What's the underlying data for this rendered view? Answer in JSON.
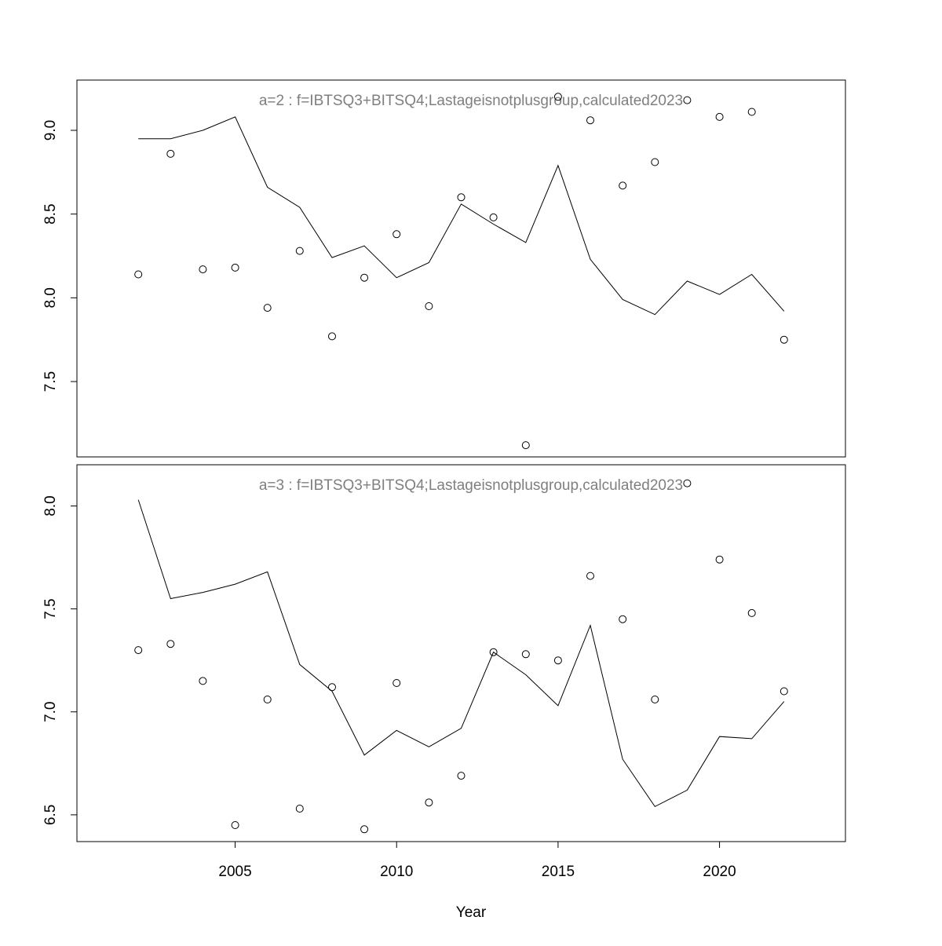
{
  "chart_data": [
    {
      "type": "line+scatter",
      "panel_label": "a=2  :  f=IBTSQ3+BITSQ4;Lastageisnotplusgroup,calculated2023",
      "xlabel": "",
      "ylabel": "",
      "xlim": [
        2000.1,
        2023.9
      ],
      "ylim": [
        7.05,
        9.3
      ],
      "yticks": [
        7.5,
        8.0,
        8.5,
        9.0
      ],
      "ytick_labels": [
        "7.5",
        "8.0",
        "8.5",
        "9.0"
      ],
      "line_series": {
        "x": [
          2002,
          2003,
          2004,
          2005,
          2006,
          2007,
          2008,
          2009,
          2010,
          2011,
          2012,
          2013,
          2014,
          2015,
          2016,
          2017,
          2018,
          2019,
          2020,
          2021,
          2022
        ],
        "values": [
          8.95,
          8.95,
          9.0,
          9.08,
          8.66,
          8.54,
          8.24,
          8.31,
          8.12,
          8.21,
          8.56,
          8.44,
          8.33,
          8.79,
          8.23,
          7.99,
          7.9,
          8.1,
          8.02,
          8.14,
          7.92
        ]
      },
      "point_series": {
        "x": [
          2002,
          2003,
          2004,
          2005,
          2006,
          2007,
          2008,
          2009,
          2010,
          2011,
          2012,
          2013,
          2014,
          2015,
          2016,
          2017,
          2018,
          2019,
          2020,
          2021,
          2022
        ],
        "values": [
          8.14,
          8.86,
          8.17,
          8.18,
          7.94,
          8.28,
          7.77,
          8.12,
          8.38,
          7.95,
          8.6,
          8.48,
          7.12,
          9.2,
          9.06,
          8.67,
          8.81,
          9.18,
          9.08,
          9.11,
          7.75
        ]
      }
    },
    {
      "type": "line+scatter",
      "panel_label": "a=3  :  f=IBTSQ3+BITSQ4;Lastageisnotplusgroup,calculated2023",
      "xlabel": "Year",
      "ylabel": "",
      "xlim": [
        2000.1,
        2023.9
      ],
      "ylim": [
        6.37,
        8.2
      ],
      "yticks": [
        6.5,
        7.0,
        7.5,
        8.0
      ],
      "ytick_labels": [
        "6.5",
        "7.0",
        "7.5",
        "8.0"
      ],
      "xticks": [
        2005,
        2010,
        2015,
        2020
      ],
      "xtick_labels": [
        "2005",
        "2010",
        "2015",
        "2020"
      ],
      "line_series": {
        "x": [
          2002,
          2003,
          2004,
          2005,
          2006,
          2007,
          2008,
          2009,
          2010,
          2011,
          2012,
          2013,
          2014,
          2015,
          2016,
          2017,
          2018,
          2019,
          2020,
          2021,
          2022
        ],
        "values": [
          8.03,
          7.55,
          7.58,
          7.62,
          7.68,
          7.23,
          7.1,
          6.79,
          6.91,
          6.83,
          6.92,
          7.29,
          7.18,
          7.03,
          7.42,
          6.77,
          6.54,
          6.62,
          6.88,
          6.87,
          7.05
        ]
      },
      "point_series": {
        "x": [
          2002,
          2003,
          2004,
          2005,
          2006,
          2007,
          2008,
          2009,
          2010,
          2011,
          2012,
          2013,
          2014,
          2015,
          2016,
          2017,
          2018,
          2019,
          2020,
          2021,
          2022
        ],
        "values": [
          7.3,
          7.33,
          7.15,
          6.45,
          7.06,
          6.53,
          7.12,
          6.43,
          7.14,
          6.56,
          6.69,
          7.29,
          7.28,
          7.25,
          7.66,
          7.45,
          7.06,
          8.11,
          7.74,
          7.48,
          7.1
        ]
      }
    }
  ],
  "style": {
    "frame_color": "#000000",
    "line_color": "#000000",
    "point_color": "#000000",
    "label_color": "#7f7f7f",
    "background": "#ffffff"
  }
}
